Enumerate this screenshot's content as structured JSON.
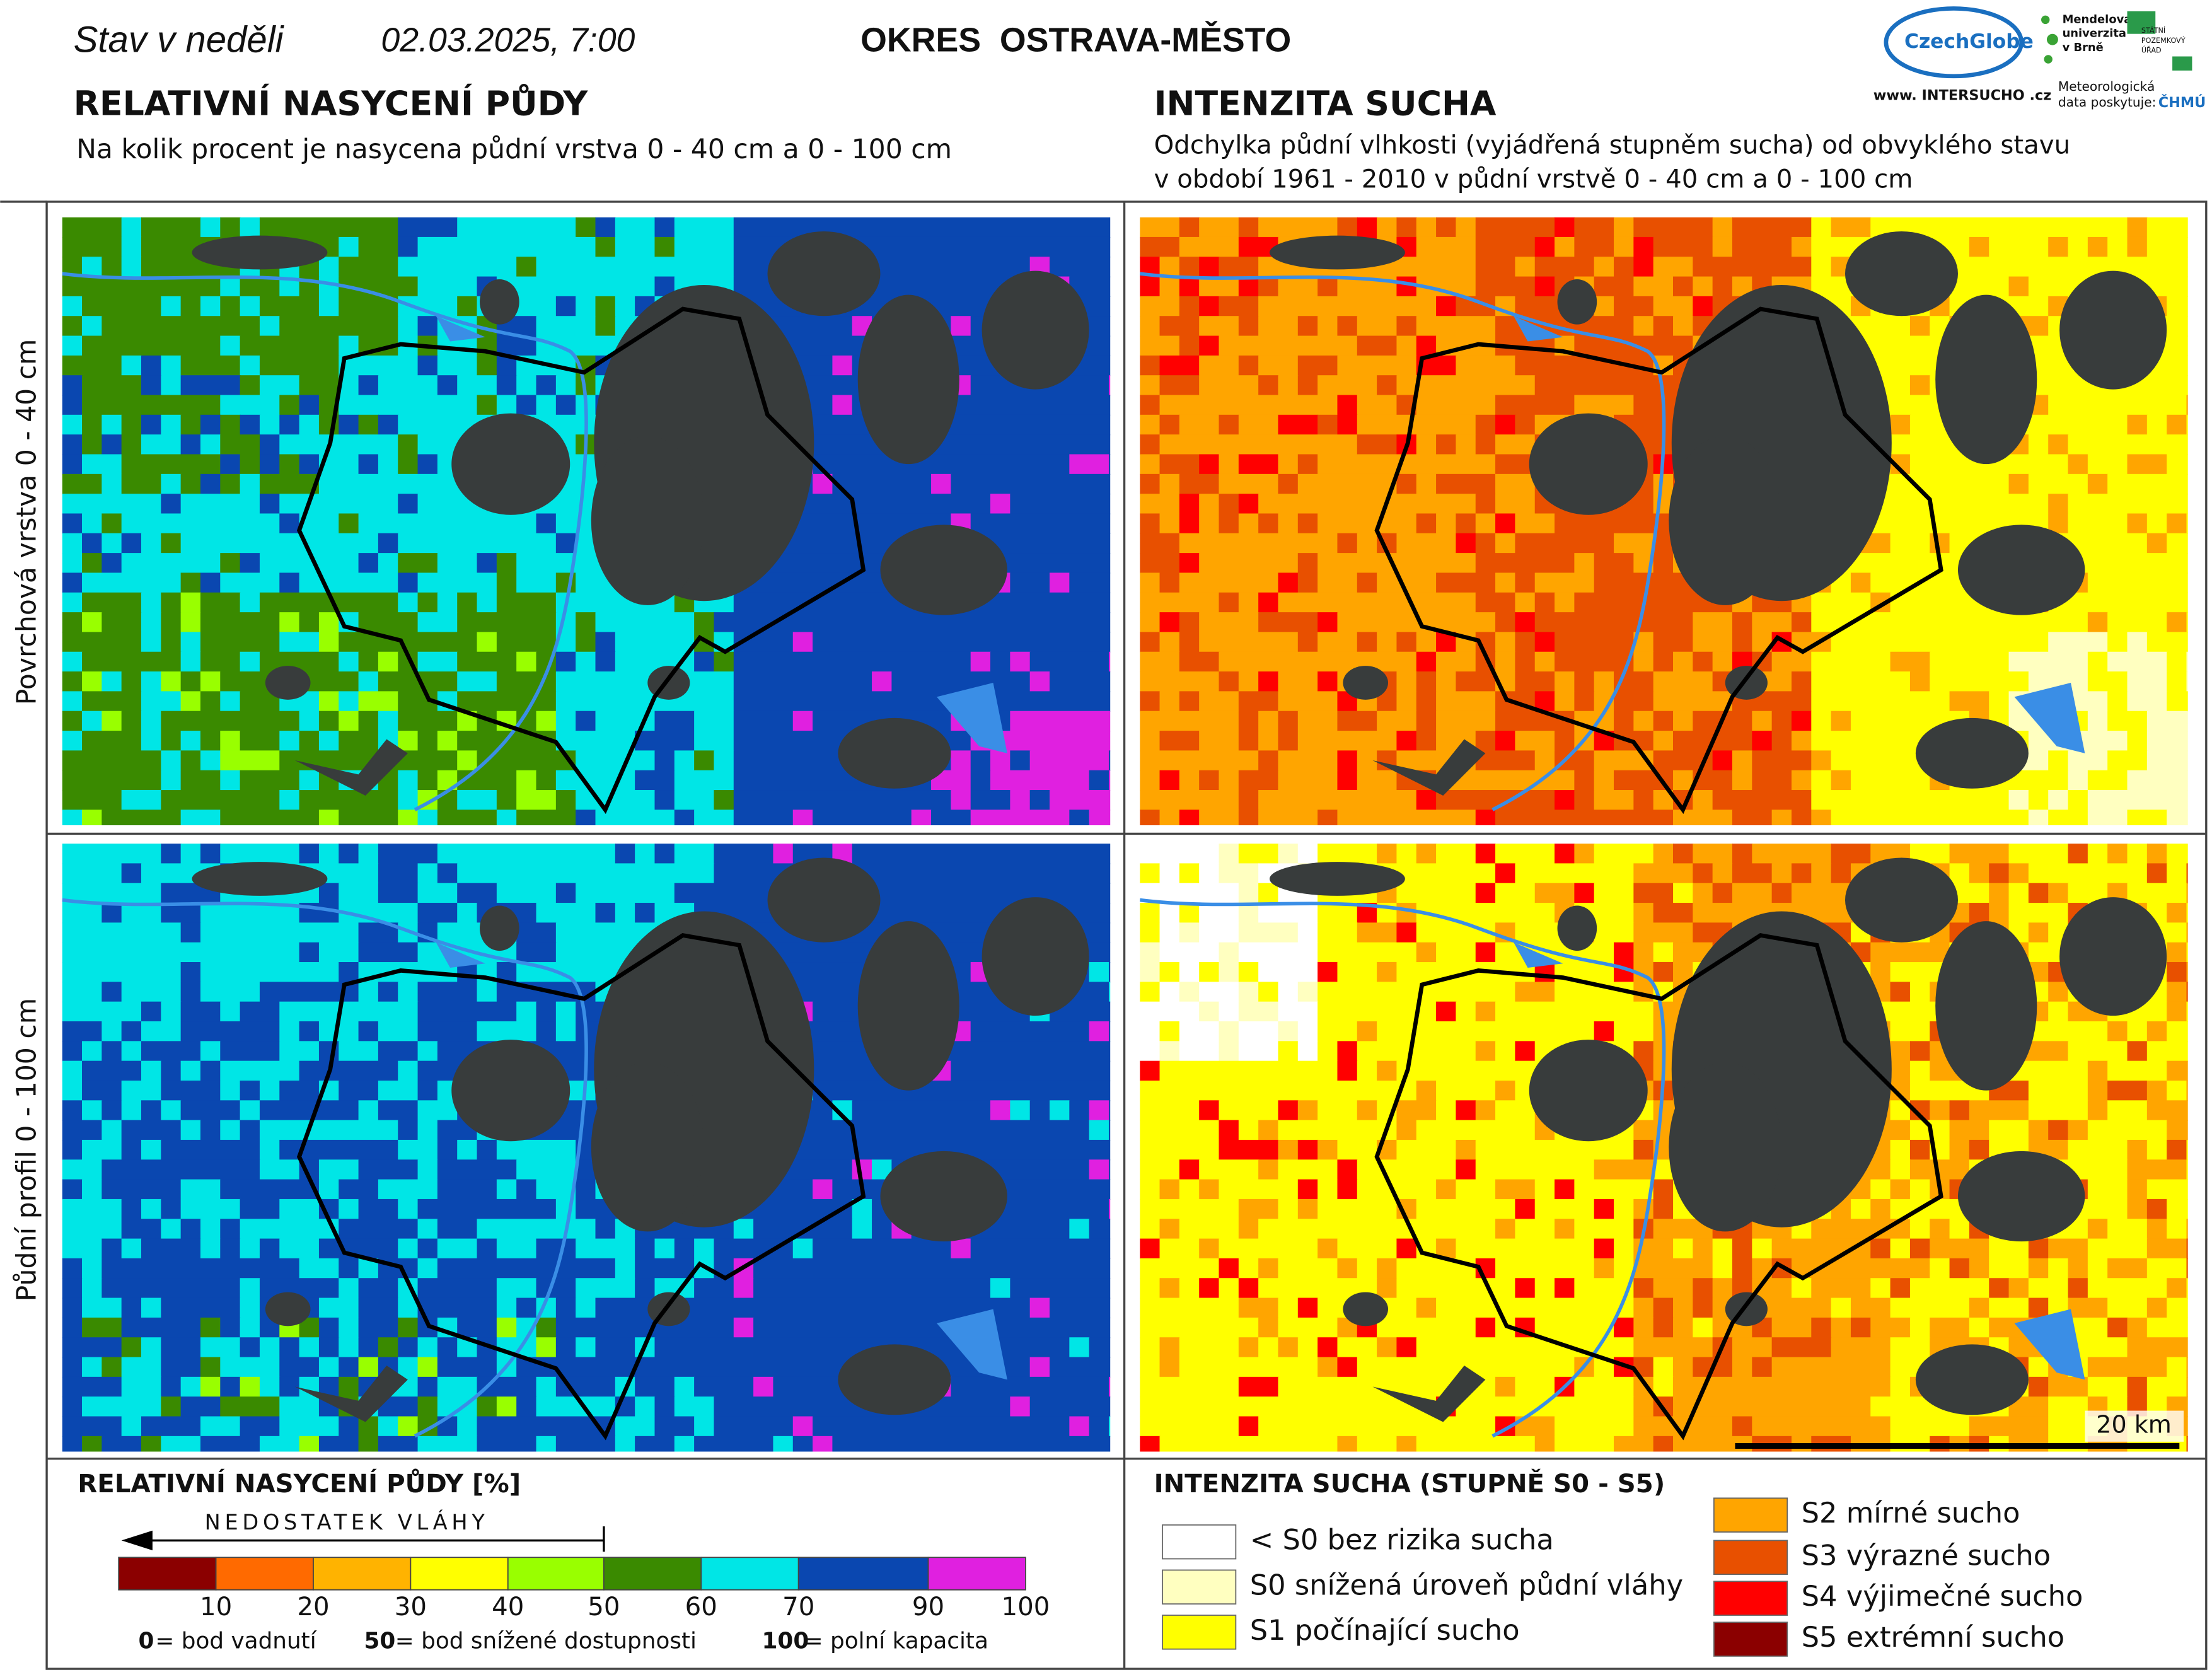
{
  "header": {
    "day_label": "Stav v neděli",
    "date": "02.03.2025, 7:00",
    "district": "OKRES  OSTRAVA-MĚSTO"
  },
  "logos": {
    "czechglobe": "CzechGlobe",
    "mendelu": [
      "Mendelova",
      "univerzita",
      "v Brně"
    ],
    "spu": [
      "STÁTNÍ",
      "POZEMKOVÝ",
      "ÚŘAD"
    ],
    "intersucho": "www. INTERSUCHO .cz",
    "chmu_note": [
      "Meteorologická",
      "data poskytuje:"
    ],
    "chmu": "ČHMÚ"
  },
  "left": {
    "title": "RELATIVNÍ NASYCENÍ PŮDY",
    "subtitle": "Na kolik procent je nasycena půdní vrstva 0 - 40 cm a 0 - 100 cm"
  },
  "right": {
    "title": "INTENZITA SUCHA",
    "subtitle": [
      "Odchylka půdní vlhkosti (vyjádřená stupněm sucha) od obvyklého stavu",
      "v období 1961 - 2010 v půdní vrstvě 0 - 40 cm a 0 - 100 cm"
    ]
  },
  "row_labels": [
    "Povrchová vrstva 0 - 40 cm",
    "Půdní profil 0 - 100 cm"
  ],
  "scale_bar": "20 km",
  "legend_left": {
    "title": "RELATIVNÍ NASYCENÍ PŮDY [%]",
    "arrow_label": "NEDOSTATEK VLÁHY",
    "classes": [
      {
        "color": "#8b0000",
        "upper": 10
      },
      {
        "color": "#ff6a00",
        "upper": 20
      },
      {
        "color": "#ffb300",
        "upper": 30
      },
      {
        "color": "#ffff00",
        "upper": 40
      },
      {
        "color": "#99ff00",
        "upper": 50
      },
      {
        "color": "#3a8a00",
        "upper": 60
      },
      {
        "color": "#00e6e6",
        "upper": 70
      },
      {
        "color": "#0a47b0",
        "upper": 90
      },
      {
        "color": "#e020e0",
        "upper": 100
      }
    ],
    "notes": [
      {
        "key": "0",
        "text": "= bod vadnutí"
      },
      {
        "key": "50",
        "text": "= bod snížené dostupnosti"
      },
      {
        "key": "100",
        "text": "= polní kapacita"
      }
    ]
  },
  "legend_right": {
    "title": "INTENZITA SUCHA (STUPNĚ S0 - S5)",
    "items": [
      {
        "color": "#ffffff",
        "label": "< S0 bez rizika sucha"
      },
      {
        "color": "#ffffc0",
        "label": "S0 snížená úroveň půdní vláhy"
      },
      {
        "color": "#ffff00",
        "label": "S1 počínající sucho"
      },
      {
        "color": "#ffa500",
        "label": "S2 mírné sucho"
      },
      {
        "color": "#e85000",
        "label": "S3 výrazné sucho"
      },
      {
        "color": "#ff0000",
        "label": "S4 výjimečné sucho"
      },
      {
        "color": "#8b0000",
        "label": "S5 extrémní sucho"
      }
    ]
  }
}
